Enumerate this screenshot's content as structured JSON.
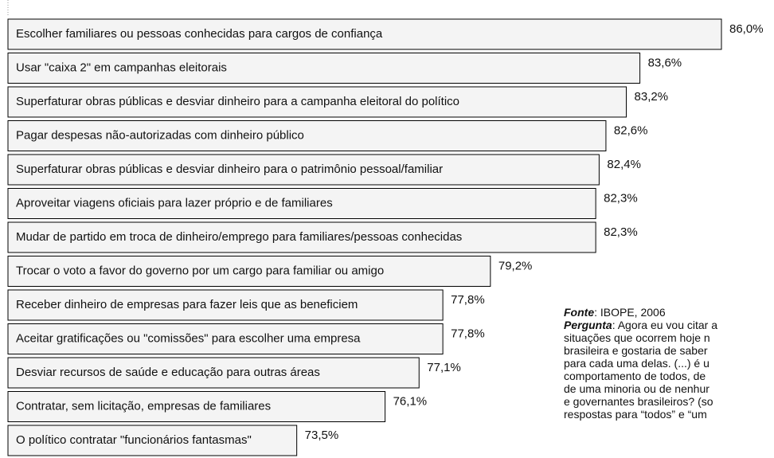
{
  "chart_data": {
    "type": "hbar",
    "categories": [
      "Escolher familiares ou pessoas conhecidas para cargos de confiança",
      "Usar \"caixa 2\" em campanhas eleitorais",
      "Superfaturar obras públicas e desviar dinheiro para a campanha eleitoral do político",
      "Pagar despesas não-autorizadas com dinheiro público",
      "Superfaturar obras públicas e desviar dinheiro para o patrimônio pessoal/familiar",
      "Aproveitar viagens oficiais para lazer próprio e de familiares",
      "Mudar de partido em troca de dinheiro/emprego para familiares/pessoas conhecidas",
      "Trocar o voto a favor do governo por um cargo para familiar ou amigo",
      "Receber dinheiro de empresas para fazer leis que as beneficiem",
      "Aceitar gratificações ou \"comissões\" para escolher uma empresa",
      "Desviar recursos de saúde e educação para outras áreas",
      "Contratar, sem licitação, empresas de familiares",
      "O político contratar \"funcionários fantasmas\""
    ],
    "values": [
      86.0,
      83.6,
      83.2,
      82.6,
      82.4,
      82.3,
      82.3,
      79.2,
      77.8,
      77.8,
      77.1,
      76.1,
      73.5
    ],
    "value_labels": [
      "86,0%",
      "83,6%",
      "83,2%",
      "82,6%",
      "82,4%",
      "82,3%",
      "82,3%",
      "79,2%",
      "77,8%",
      "77,8%",
      "77,1%",
      "76,1%",
      "73,5%"
    ],
    "xlim": [
      65,
      86
    ],
    "color": "#f4f4f4"
  },
  "note": {
    "source_label": "Fonte",
    "source": ": IBOPE, 2006",
    "question_label": "Pergunta",
    "question_lines": [
      ": Agora eu vou citar a",
      "situações que ocorrem hoje n",
      "brasileira e gostaria de saber",
      "para cada uma delas. (...) é u",
      "comportamento de todos, de",
      "de uma minoria ou de nenhur",
      "e governantes brasileiros? (so",
      "respostas para “todos” e “um"
    ]
  }
}
